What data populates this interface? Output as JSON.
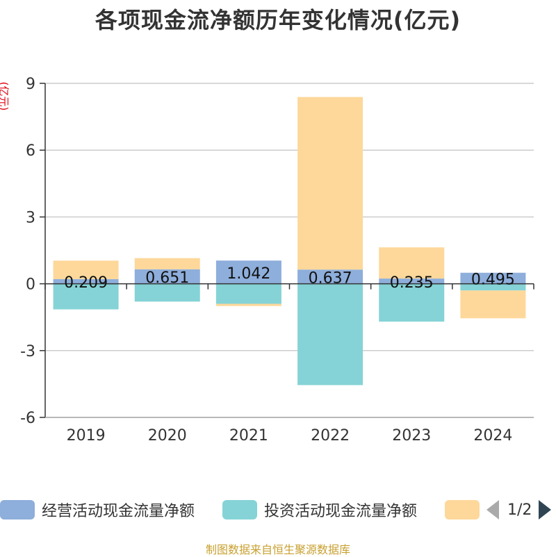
{
  "title": "各项现金流净额历年变化情况(亿元)",
  "unit_label": "(亿元)",
  "source_note": "制图数据来自恒生聚源数据库",
  "legend": {
    "items": [
      {
        "label": "经营活动现金流量净额",
        "color": "#8eaedb"
      },
      {
        "label": "投资活动现金流量净额",
        "color": "#85d3d6"
      },
      {
        "label": "",
        "color": "#fdd89a"
      }
    ],
    "page_indicator": "1/2"
  },
  "chart_data": {
    "type": "bar",
    "stacked": true,
    "categories": [
      "2019",
      "2020",
      "2021",
      "2022",
      "2023",
      "2024"
    ],
    "ylim": [
      -6,
      9
    ],
    "yticks": [
      -6,
      -3,
      0,
      3,
      6,
      9
    ],
    "grid": true,
    "series": [
      {
        "name": "经营活动现金流量净额",
        "color": "#8eaedb",
        "values": [
          0.209,
          0.651,
          1.042,
          0.637,
          0.235,
          0.495
        ],
        "labels": [
          "0.209",
          "0.651",
          "1.042",
          "0.637",
          "0.235",
          "0.495"
        ]
      },
      {
        "name": "投资活动现金流量净额",
        "color": "#85d3d6",
        "values": [
          -1.15,
          -0.8,
          -0.9,
          -4.55,
          -1.7,
          -0.3
        ]
      },
      {
        "name": "",
        "color": "#fdd89a",
        "values": [
          0.83,
          0.5,
          -0.1,
          7.75,
          1.4,
          -1.25
        ]
      }
    ]
  }
}
